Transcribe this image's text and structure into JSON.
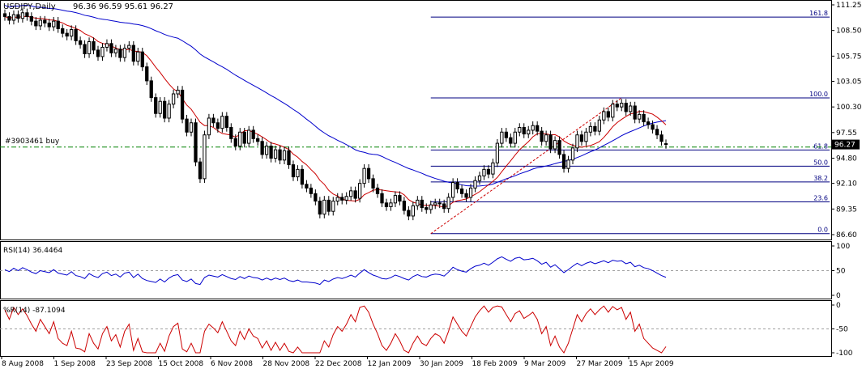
{
  "header": {
    "symbol": "USDJPY,Daily",
    "ohlc": "96.36 96.59 95.61 96.27"
  },
  "order_label": "#3903461 buy",
  "last_price_label": "96.27",
  "colors": {
    "price_line": "#000000",
    "ma_fast": "#cc0000",
    "ma_slow": "#0000cc",
    "fib": "#000080",
    "order_line": "#008000",
    "rsi": "#0000cc",
    "wpr": "#cc0000",
    "grid": "#c8c8c8"
  },
  "chart_data": [
    {
      "type": "candlestick",
      "title": "USDJPY,Daily",
      "y_ticks": [
        "111.25",
        "108.50",
        "105.75",
        "103.05",
        "100.30",
        "97.55",
        "94.80",
        "92.10",
        "89.35",
        "86.60"
      ],
      "ylim": [
        86.6,
        111.25
      ],
      "x_ticks": [
        "8 Aug 2008",
        "1 Sep 2008",
        "23 Sep 2008",
        "15 Oct 2008",
        "6 Nov 2008",
        "28 Nov 2008",
        "22 Dec 2008",
        "12 Jan 2009",
        "30 Jan 2009",
        "18 Feb 2009",
        "9 Mar 2009",
        "27 Mar 2009",
        "15 Apr 2009"
      ],
      "close": [
        110.0,
        109.6,
        110.2,
        109.8,
        110.4,
        110.0,
        109.5,
        109.0,
        109.6,
        109.3,
        108.9,
        109.5,
        108.7,
        108.2,
        107.9,
        108.6,
        107.4,
        107.0,
        106.0,
        107.3,
        106.4,
        105.7,
        106.7,
        107.1,
        106.1,
        106.5,
        105.6,
        106.6,
        106.9,
        105.2,
        106.2,
        104.6,
        103.1,
        101.3,
        99.6,
        100.9,
        99.1,
        100.6,
        101.7,
        102.1,
        99.0,
        97.6,
        98.6,
        94.4,
        92.6,
        97.3,
        99.1,
        98.6,
        98.0,
        99.3,
        98.1,
        96.9,
        96.1,
        97.6,
        96.4,
        97.8,
        96.9,
        96.6,
        95.2,
        96.1,
        94.8,
        95.7,
        94.6,
        95.6,
        94.1,
        92.8,
        93.6,
        92.0,
        91.6,
        91.0,
        90.2,
        88.8,
        90.3,
        89.1,
        90.2,
        90.6,
        90.3,
        90.7,
        91.3,
        90.5,
        92.1,
        93.7,
        92.6,
        91.6,
        91.0,
        90.0,
        89.6,
        90.0,
        90.8,
        90.2,
        89.2,
        88.6,
        89.7,
        90.3,
        89.5,
        89.3,
        89.8,
        90.0,
        89.9,
        89.4,
        90.6,
        92.2,
        91.5,
        91.0,
        90.6,
        91.6,
        92.4,
        92.9,
        93.6,
        93.1,
        94.3,
        96.4,
        97.6,
        97.0,
        96.4,
        97.6,
        98.1,
        97.4,
        97.8,
        98.3,
        97.7,
        96.6,
        97.3,
        95.8,
        96.7,
        95.2,
        93.7,
        94.6,
        95.9,
        97.3,
        96.6,
        97.6,
        98.2,
        97.7,
        98.9,
        99.8,
        99.2,
        100.6,
        100.3,
        100.7,
        99.8,
        100.4,
        99.0,
        99.5,
        98.7,
        98.4,
        97.9,
        97.3,
        96.6,
        96.27
      ],
      "open": [
        110.3,
        110.0,
        109.6,
        110.2,
        109.8,
        110.4,
        110.0,
        109.5,
        109.0,
        109.6,
        109.3,
        108.9,
        109.5,
        108.7,
        108.2,
        107.9,
        108.6,
        107.4,
        107.0,
        106.0,
        107.3,
        106.4,
        105.7,
        106.7,
        107.1,
        106.1,
        106.5,
        105.6,
        106.6,
        106.9,
        105.2,
        106.2,
        104.6,
        103.1,
        101.3,
        99.6,
        100.9,
        99.1,
        100.6,
        101.7,
        102.1,
        99.0,
        97.6,
        98.6,
        94.4,
        92.6,
        97.3,
        99.1,
        98.6,
        98.0,
        99.3,
        98.1,
        96.9,
        96.1,
        97.6,
        96.4,
        97.8,
        96.9,
        96.6,
        95.2,
        96.1,
        94.8,
        95.7,
        94.6,
        95.6,
        94.1,
        92.8,
        93.6,
        92.0,
        91.6,
        91.0,
        90.2,
        88.8,
        90.3,
        89.1,
        90.2,
        90.6,
        90.3,
        90.7,
        91.3,
        90.5,
        92.1,
        93.7,
        92.6,
        91.6,
        91.0,
        90.0,
        89.6,
        90.0,
        90.8,
        90.2,
        89.2,
        88.6,
        89.7,
        90.3,
        89.5,
        89.3,
        89.8,
        90.0,
        89.9,
        89.4,
        90.6,
        92.2,
        91.5,
        91.0,
        90.6,
        91.6,
        92.4,
        92.9,
        93.6,
        93.1,
        94.3,
        96.4,
        97.6,
        97.0,
        96.4,
        97.6,
        98.1,
        97.4,
        97.8,
        98.3,
        97.7,
        96.6,
        97.3,
        95.8,
        96.7,
        95.2,
        93.7,
        94.6,
        95.9,
        97.3,
        96.6,
        97.6,
        98.2,
        97.7,
        98.9,
        99.8,
        99.2,
        100.6,
        100.3,
        100.7,
        99.8,
        100.4,
        99.0,
        99.5,
        98.7,
        98.4,
        97.9,
        97.3,
        96.36
      ],
      "ma_fast_period_note": "",
      "fib_levels": [
        "161.8",
        "100.0",
        "61.8",
        "50.0",
        "38.2",
        "23.6",
        "0.0"
      ],
      "fib_prices": [
        109.94,
        101.27,
        95.68,
        93.95,
        92.25,
        90.11,
        86.71
      ],
      "order_price": 96.0
    },
    {
      "type": "line",
      "title": "RSI(14) 36.4464",
      "ylim": [
        0,
        100
      ],
      "y_ticks": [
        "100",
        "50",
        "0"
      ],
      "levels": [
        50
      ],
      "values": [
        52,
        48,
        55,
        50,
        56,
        52,
        47,
        44,
        50,
        48,
        46,
        52,
        45,
        43,
        41,
        48,
        40,
        38,
        34,
        44,
        39,
        36,
        44,
        47,
        40,
        43,
        37,
        45,
        47,
        36,
        43,
        34,
        30,
        28,
        26,
        33,
        27,
        35,
        40,
        42,
        31,
        28,
        33,
        24,
        22,
        36,
        41,
        39,
        37,
        42,
        38,
        34,
        32,
        38,
        34,
        39,
        36,
        35,
        31,
        35,
        31,
        35,
        32,
        35,
        30,
        28,
        31,
        27,
        27,
        26,
        25,
        22,
        31,
        28,
        33,
        36,
        34,
        37,
        41,
        37,
        45,
        52,
        46,
        41,
        38,
        34,
        33,
        36,
        41,
        38,
        34,
        31,
        38,
        42,
        38,
        37,
        41,
        43,
        42,
        39,
        47,
        57,
        52,
        49,
        47,
        54,
        59,
        61,
        65,
        61,
        67,
        74,
        78,
        73,
        69,
        75,
        77,
        72,
        73,
        75,
        70,
        63,
        67,
        57,
        62,
        54,
        46,
        52,
        59,
        65,
        60,
        65,
        68,
        64,
        67,
        70,
        66,
        71,
        69,
        70,
        64,
        67,
        58,
        61,
        56,
        54,
        50,
        45,
        40,
        36.4464
      ]
    },
    {
      "type": "line",
      "title": "%R(14) -87.1094",
      "ylim": [
        -100,
        0
      ],
      "y_ticks": [
        "0",
        "-50",
        "-100"
      ],
      "levels": [
        -50
      ],
      "values": [
        -10,
        -30,
        -5,
        -20,
        -8,
        -22,
        -40,
        -55,
        -30,
        -45,
        -60,
        -35,
        -70,
        -80,
        -85,
        -55,
        -90,
        -92,
        -98,
        -60,
        -80,
        -92,
        -60,
        -45,
        -75,
        -62,
        -88,
        -55,
        -40,
        -95,
        -70,
        -98,
        -100,
        -100,
        -100,
        -80,
        -97,
        -65,
        -45,
        -38,
        -92,
        -98,
        -80,
        -100,
        -100,
        -55,
        -40,
        -48,
        -58,
        -35,
        -55,
        -75,
        -85,
        -55,
        -72,
        -50,
        -65,
        -70,
        -90,
        -75,
        -95,
        -78,
        -95,
        -80,
        -97,
        -100,
        -88,
        -100,
        -100,
        -100,
        -100,
        -100,
        -75,
        -88,
        -62,
        -45,
        -55,
        -40,
        -20,
        -35,
        -5,
        -2,
        -15,
        -40,
        -60,
        -85,
        -95,
        -80,
        -60,
        -75,
        -95,
        -100,
        -80,
        -65,
        -80,
        -85,
        -70,
        -60,
        -65,
        -80,
        -55,
        -25,
        -40,
        -55,
        -65,
        -45,
        -25,
        -12,
        -2,
        -15,
        -5,
        -2,
        -4,
        -20,
        -35,
        -18,
        -12,
        -28,
        -22,
        -15,
        -30,
        -60,
        -45,
        -85,
        -65,
        -88,
        -100,
        -80,
        -50,
        -20,
        -35,
        -18,
        -8,
        -20,
        -10,
        -2,
        -15,
        -3,
        -10,
        -5,
        -30,
        -15,
        -55,
        -40,
        -70,
        -80,
        -90,
        -95,
        -100,
        -87.1094
      ]
    }
  ]
}
